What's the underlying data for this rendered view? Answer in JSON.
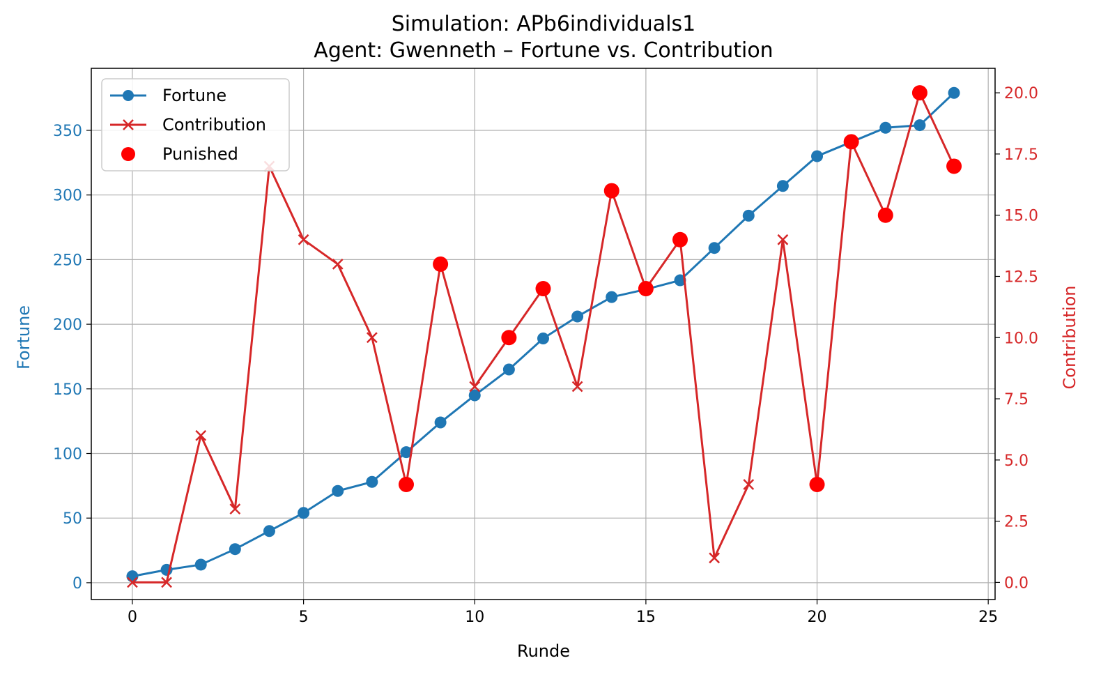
{
  "chart_data": {
    "type": "line",
    "title": "Simulation: APb6individuals1",
    "subtitle": "Agent: Gwenneth – Fortune vs. Contribution",
    "xlabel": "Runde",
    "ylabel_left": "Fortune",
    "ylabel_right": "Contribution",
    "xlim": [
      -1.2,
      25.2
    ],
    "ylim_left": [
      -13,
      398
    ],
    "ylim_right": [
      -0.7,
      21.0
    ],
    "x_ticks": [
      0,
      5,
      10,
      15,
      20,
      25
    ],
    "x_tick_labels": [
      "0",
      "5",
      "10",
      "15",
      "20",
      "25"
    ],
    "y_left_ticks": [
      0,
      50,
      100,
      150,
      200,
      250,
      300,
      350
    ],
    "y_left_tick_labels": [
      "0",
      "50",
      "100",
      "150",
      "200",
      "250",
      "300",
      "350"
    ],
    "y_right_ticks": [
      0,
      2.5,
      5,
      7.5,
      10,
      12.5,
      15,
      17.5,
      20
    ],
    "y_right_tick_labels": [
      "0.0",
      "2.5",
      "5.0",
      "7.5",
      "10.0",
      "12.5",
      "15.0",
      "17.5",
      "20.0"
    ],
    "grid": true,
    "legend_position": "top-left",
    "colors": {
      "fortune": "#1f77b4",
      "contribution": "#d62728",
      "punished": "#ff0000"
    },
    "x": [
      0,
      1,
      2,
      3,
      4,
      5,
      6,
      7,
      8,
      9,
      10,
      11,
      12,
      13,
      14,
      15,
      16,
      17,
      18,
      19,
      20,
      21,
      22,
      23,
      24
    ],
    "series": [
      {
        "name": "Fortune",
        "axis": "left",
        "marker": "circle",
        "values": [
          5,
          10,
          14,
          26,
          40,
          54,
          71,
          78,
          101,
          124,
          145,
          165,
          189,
          206,
          221,
          227,
          234,
          259,
          284,
          307,
          330,
          341,
          352,
          354,
          379
        ]
      },
      {
        "name": "Contribution",
        "axis": "right",
        "marker": "x",
        "values": [
          0,
          0,
          6,
          3,
          17,
          14,
          13,
          10,
          4,
          13,
          8,
          10,
          12,
          8,
          16,
          12,
          14,
          1,
          4,
          14,
          4,
          18,
          15,
          20,
          17
        ]
      },
      {
        "name": "Punished",
        "axis": "right",
        "type": "scatter",
        "x": [
          8,
          9,
          11,
          12,
          14,
          15,
          16,
          20,
          21,
          22,
          23,
          24
        ],
        "values": [
          4,
          13,
          10,
          12,
          16,
          12,
          14,
          4,
          18,
          15,
          20,
          17
        ]
      }
    ]
  }
}
